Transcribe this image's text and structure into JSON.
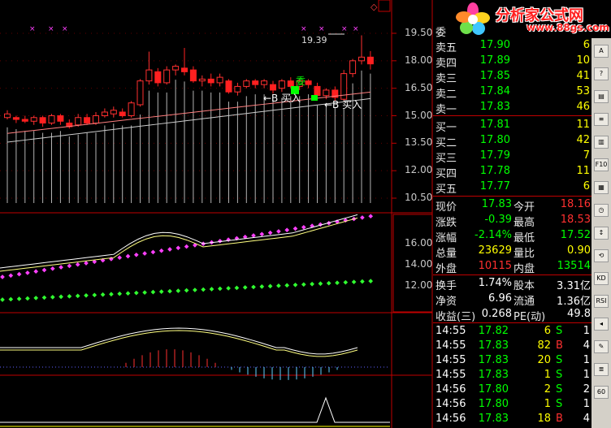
{
  "chart": {
    "price_axis": [
      "19.50",
      "18.00",
      "16.50",
      "15.00",
      "13.50",
      "12.00",
      "10.50"
    ],
    "mid_axis": [
      "16.00",
      "14.00",
      "12.00"
    ],
    "high_label": "19.39",
    "buy_label_1": "←B 买入",
    "buy_label_2": "←B 买入",
    "vertical_mark": "委",
    "candles": [
      {
        "o": 14.9,
        "c": 15.1,
        "h": 15.3,
        "l": 14.8
      },
      {
        "o": 14.9,
        "c": 14.8,
        "h": 15.0,
        "l": 14.6
      },
      {
        "o": 14.8,
        "c": 14.7,
        "h": 15.0,
        "l": 14.6
      },
      {
        "o": 14.7,
        "c": 14.9,
        "h": 15.0,
        "l": 14.5
      },
      {
        "o": 14.9,
        "c": 14.6,
        "h": 15.0,
        "l": 14.4
      },
      {
        "o": 14.6,
        "c": 15.0,
        "h": 15.1,
        "l": 14.5
      },
      {
        "o": 15.0,
        "c": 14.7,
        "h": 15.1,
        "l": 14.5
      },
      {
        "o": 14.6,
        "c": 14.4,
        "h": 14.8,
        "l": 14.3
      },
      {
        "o": 14.5,
        "c": 14.9,
        "h": 15.1,
        "l": 14.4
      },
      {
        "o": 14.9,
        "c": 14.6,
        "h": 15.1,
        "l": 14.5
      },
      {
        "o": 14.6,
        "c": 15.0,
        "h": 15.2,
        "l": 14.5
      },
      {
        "o": 15.0,
        "c": 15.2,
        "h": 15.4,
        "l": 14.9
      },
      {
        "o": 15.1,
        "c": 15.3,
        "h": 15.5,
        "l": 14.9
      },
      {
        "o": 15.2,
        "c": 15.0,
        "h": 15.4,
        "l": 14.9
      },
      {
        "o": 15.0,
        "c": 15.7,
        "h": 15.8,
        "l": 14.9
      },
      {
        "o": 15.6,
        "c": 16.9,
        "h": 17.0,
        "l": 15.5
      },
      {
        "o": 16.9,
        "c": 17.5,
        "h": 18.5,
        "l": 16.7
      },
      {
        "o": 17.4,
        "c": 16.8,
        "h": 17.6,
        "l": 16.6
      },
      {
        "o": 16.8,
        "c": 17.5,
        "h": 17.7,
        "l": 16.7
      },
      {
        "o": 17.5,
        "c": 17.7,
        "h": 17.8,
        "l": 17.2
      },
      {
        "o": 17.6,
        "c": 17.4,
        "h": 18.7,
        "l": 17.2
      },
      {
        "o": 17.5,
        "c": 16.9,
        "h": 17.7,
        "l": 16.8
      },
      {
        "o": 16.9,
        "c": 17.0,
        "h": 17.2,
        "l": 16.6
      },
      {
        "o": 17.0,
        "c": 16.8,
        "h": 17.3,
        "l": 16.6
      },
      {
        "o": 16.8,
        "c": 17.1,
        "h": 17.3,
        "l": 16.6
      },
      {
        "o": 16.9,
        "c": 16.3,
        "h": 17.0,
        "l": 16.2
      },
      {
        "o": 16.3,
        "c": 16.6,
        "h": 16.8,
        "l": 16.1
      },
      {
        "o": 16.6,
        "c": 16.9,
        "h": 17.0,
        "l": 16.5
      },
      {
        "o": 16.9,
        "c": 16.7,
        "h": 17.0,
        "l": 16.5
      },
      {
        "o": 16.7,
        "c": 16.9,
        "h": 17.0,
        "l": 16.5
      },
      {
        "o": 16.7,
        "c": 16.4,
        "h": 16.9,
        "l": 16.2
      },
      {
        "o": 16.5,
        "c": 16.9,
        "h": 17.0,
        "l": 16.3
      },
      {
        "o": 16.9,
        "c": 16.6,
        "h": 17.1,
        "l": 16.5
      },
      {
        "o": 16.6,
        "c": 16.9,
        "h": 17.0,
        "l": 16.4
      },
      {
        "o": 16.9,
        "c": 16.7,
        "h": 17.0,
        "l": 16.5
      },
      {
        "o": 16.6,
        "c": 16.1,
        "h": 16.8,
        "l": 15.9
      },
      {
        "o": 16.1,
        "c": 16.4,
        "h": 16.5,
        "l": 15.9
      },
      {
        "o": 16.4,
        "c": 16.0,
        "h": 16.6,
        "l": 15.8
      },
      {
        "o": 15.9,
        "c": 17.3,
        "h": 17.5,
        "l": 15.8
      },
      {
        "o": 17.3,
        "c": 18.0,
        "h": 18.1,
        "l": 17.1
      },
      {
        "o": 18.0,
        "c": 18.2,
        "h": 19.39,
        "l": 17.8
      },
      {
        "o": 18.2,
        "c": 17.83,
        "h": 18.53,
        "l": 17.52
      }
    ]
  },
  "quote": {
    "sell": [
      {
        "label": "委",
        "price": "",
        "vol": ""
      },
      {
        "label": "卖五",
        "price": "17.90",
        "vol": "6"
      },
      {
        "label": "卖四",
        "price": "17.89",
        "vol": "10"
      },
      {
        "label": "卖三",
        "price": "17.85",
        "vol": "41"
      },
      {
        "label": "卖二",
        "price": "17.84",
        "vol": "53"
      },
      {
        "label": "卖一",
        "price": "17.83",
        "vol": "46"
      }
    ],
    "buy": [
      {
        "label": "买一",
        "price": "17.81",
        "vol": "11"
      },
      {
        "label": "买二",
        "price": "17.80",
        "vol": "42"
      },
      {
        "label": "买三",
        "price": "17.79",
        "vol": "7"
      },
      {
        "label": "买四",
        "price": "17.78",
        "vol": "11"
      },
      {
        "label": "买五",
        "price": "17.77",
        "vol": "6"
      }
    ],
    "stats": [
      {
        "l1": "现价",
        "v1": "17.83",
        "l2": "今开",
        "v2": "18.16",
        "c1": "green",
        "c2": "red"
      },
      {
        "l1": "涨跌",
        "v1": "-0.39",
        "l2": "最高",
        "v2": "18.53",
        "c1": "green",
        "c2": "red"
      },
      {
        "l1": "涨幅",
        "v1": "-2.14%",
        "l2": "最低",
        "v2": "17.52",
        "c1": "green",
        "c2": "green"
      },
      {
        "l1": "总量",
        "v1": "23629",
        "l2": "量比",
        "v2": "0.90",
        "c1": "yellow",
        "c2": "yellow"
      },
      {
        "l1": "外盘",
        "v1": "10115",
        "l2": "内盘",
        "v2": "13514",
        "c1": "red",
        "c2": "green"
      }
    ],
    "fund": [
      {
        "l1": "换手",
        "v1": "1.74%",
        "l2": "股本",
        "v2": "3.31亿"
      },
      {
        "l1": "净资",
        "v1": "6.96",
        "l2": "流通",
        "v2": "1.36亿"
      },
      {
        "l1": "收益(三)",
        "v1": "0.268",
        "l2": "PE(动)",
        "v2": "49.8"
      }
    ],
    "ticks": [
      {
        "t": "14:55",
        "p": "17.82",
        "v": "6",
        "bs": "S",
        "n": "1"
      },
      {
        "t": "14:55",
        "p": "17.83",
        "v": "82",
        "bs": "B",
        "n": "4"
      },
      {
        "t": "14:55",
        "p": "17.83",
        "v": "20",
        "bs": "S",
        "n": "1"
      },
      {
        "t": "14:55",
        "p": "17.83",
        "v": "1",
        "bs": "S",
        "n": "1"
      },
      {
        "t": "14:56",
        "p": "17.80",
        "v": "2",
        "bs": "S",
        "n": "2"
      },
      {
        "t": "14:56",
        "p": "17.80",
        "v": "1",
        "bs": "S",
        "n": "1"
      },
      {
        "t": "14:56",
        "p": "17.83",
        "v": "18",
        "bs": "B",
        "n": "4"
      }
    ]
  },
  "logo": {
    "text": "分析家公式网",
    "url": "www.88gs.com"
  },
  "toolbar": {
    "buttons": [
      "A",
      "?",
      "▤",
      "≡",
      "▥",
      "F10",
      "▦",
      "◷",
      "↕",
      "⟲",
      "KD",
      "RSI",
      "◂",
      "✎",
      "≣",
      "60"
    ]
  },
  "colors": {
    "up": "#ff3030",
    "down": "#00ff00",
    "axis": "#c00000",
    "ma1": "#ffffff",
    "ma2": "#ffff80",
    "purple": "#ff40ff",
    "greendots": "#30ff30"
  }
}
